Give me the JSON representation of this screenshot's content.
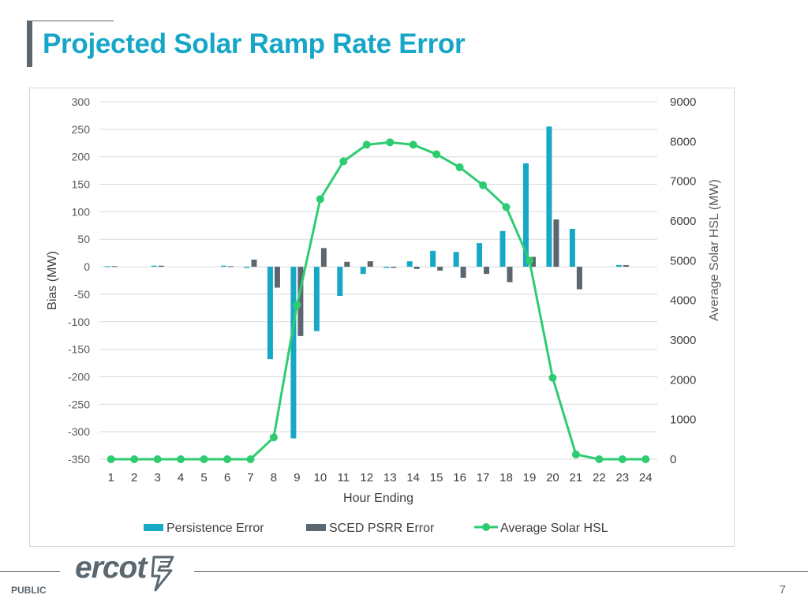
{
  "slide": {
    "title": "Projected Solar Ramp Rate Error",
    "footer_label": "PUBLIC",
    "page_number": "7",
    "logo_text": "ercot"
  },
  "colors": {
    "title": "#16a6c8",
    "persistence": "#17a8c6",
    "sced": "#5b6770",
    "hsl": "#2ecc71",
    "grid": "#d9d9d9",
    "text": "#595959"
  },
  "chart_data": {
    "type": "bar",
    "title": "",
    "xlabel": "Hour Ending",
    "ylabel": "Bias (MW)",
    "y2label": "Average Solar HSL (MW)",
    "categories": [
      "1",
      "2",
      "3",
      "4",
      "5",
      "6",
      "7",
      "8",
      "9",
      "10",
      "11",
      "12",
      "13",
      "14",
      "15",
      "16",
      "17",
      "18",
      "19",
      "20",
      "21",
      "22",
      "23",
      "24"
    ],
    "ylim": [
      -350,
      300
    ],
    "yticks": [
      300,
      250,
      200,
      150,
      100,
      50,
      0,
      -50,
      -100,
      -150,
      -200,
      -250,
      -300,
      -350
    ],
    "y2lim": [
      0,
      9000
    ],
    "y2ticks": [
      9000,
      8000,
      7000,
      6000,
      5000,
      4000,
      3000,
      2000,
      1000,
      0
    ],
    "legend_position": "bottom",
    "grid": true,
    "series": [
      {
        "name": "Persistence Error",
        "type": "bar",
        "axis": "left",
        "values": [
          1,
          0,
          2,
          0,
          0,
          2,
          -2,
          -168,
          -312,
          -117,
          -53,
          -13,
          -2,
          10,
          29,
          27,
          43,
          65,
          188,
          255,
          69,
          0,
          3,
          0
        ]
      },
      {
        "name": "SCED PSRR Error",
        "type": "bar",
        "axis": "left",
        "values": [
          1,
          0,
          2,
          0,
          0,
          1,
          13,
          -38,
          -126,
          34,
          9,
          10,
          -2,
          -4,
          -7,
          -20,
          -13,
          -28,
          18,
          86,
          -41,
          0,
          3,
          0
        ]
      },
      {
        "name": "Average Solar HSL",
        "type": "line",
        "axis": "right",
        "values": [
          0,
          0,
          0,
          0,
          0,
          0,
          0,
          550,
          3880,
          6550,
          7500,
          7920,
          7980,
          7920,
          7680,
          7350,
          6900,
          6350,
          5000,
          2050,
          120,
          0,
          0,
          0
        ]
      }
    ]
  }
}
